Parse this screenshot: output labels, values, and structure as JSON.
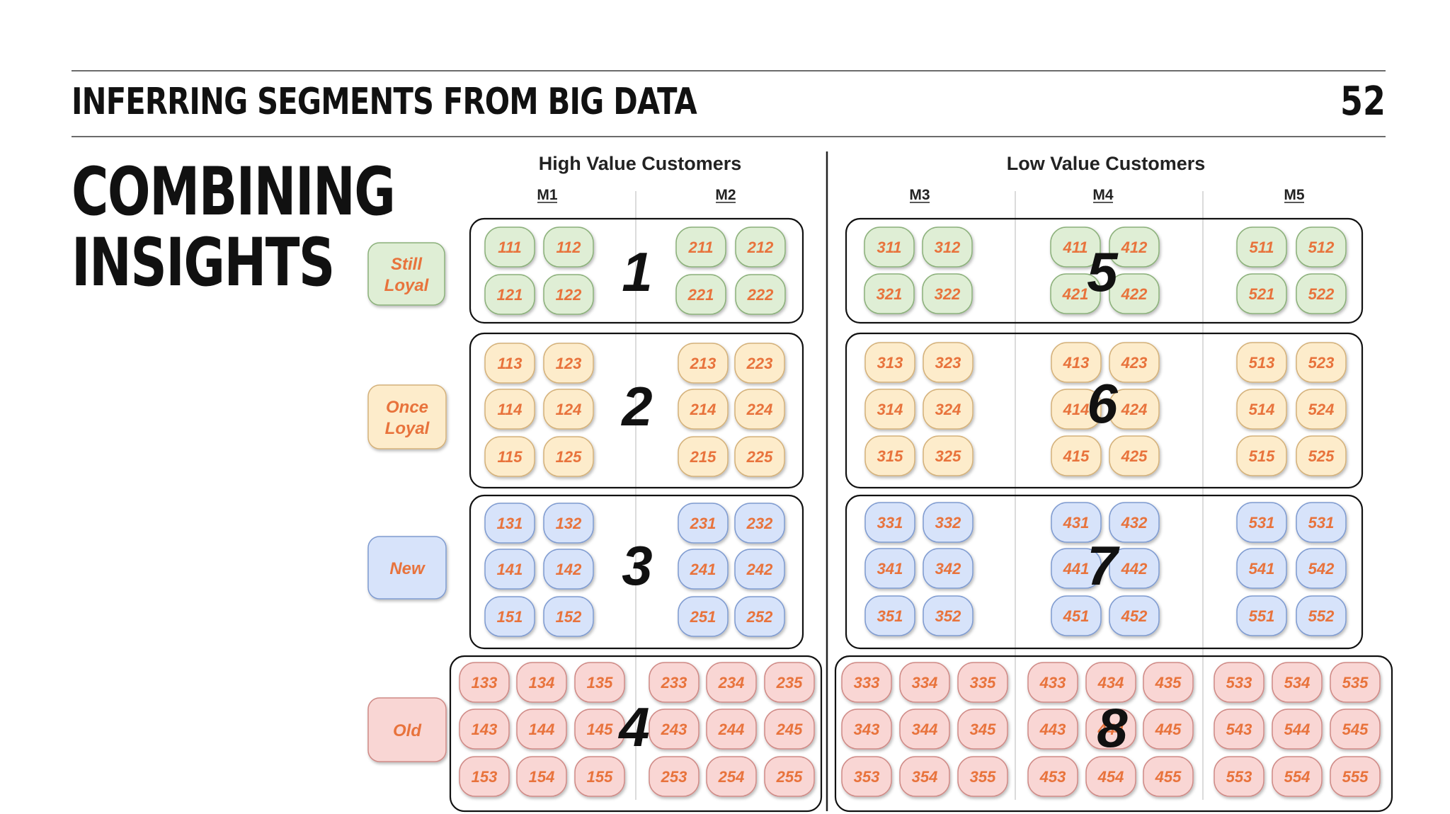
{
  "header": {
    "title": "INFERRING SEGMENTS FROM BIG DATA",
    "page_number": "52"
  },
  "heading": {
    "line1": "COMBINING",
    "line2": "INSIGHTS"
  },
  "diagram": {
    "groups": [
      {
        "label": "High Value Customers",
        "months": [
          "M1",
          "M2"
        ]
      },
      {
        "label": "Low Value Customers",
        "months": [
          "M3",
          "M4",
          "M5"
        ]
      }
    ],
    "rows": [
      {
        "label_lines": [
          "Still",
          "Loyal"
        ],
        "fill": "#dfeed5",
        "stroke": "#8bb07a"
      },
      {
        "label_lines": [
          "Once",
          "Loyal"
        ],
        "fill": "#fdeccb",
        "stroke": "#d4b17a"
      },
      {
        "label_lines": [
          "New"
        ],
        "fill": "#d7e3fa",
        "stroke": "#7f9bd0"
      },
      {
        "label_lines": [
          "Old"
        ],
        "fill": "#f9d6d4",
        "stroke": "#cf8a86"
      }
    ],
    "cell_text_color": "#e8733c",
    "segments": [
      {
        "id": "1",
        "label": "1",
        "row": 0,
        "cells": [
          [
            "111",
            "112",
            "211",
            "212"
          ],
          [
            "121",
            "122",
            "221",
            "222"
          ]
        ]
      },
      {
        "id": "5",
        "label": "5",
        "row": 0,
        "cells": [
          [
            "311",
            "312",
            "411",
            "412",
            "511",
            "512"
          ],
          [
            "321",
            "322",
            "421",
            "422",
            "521",
            "522"
          ]
        ]
      },
      {
        "id": "2",
        "label": "2",
        "row": 1,
        "cells": [
          [
            "113",
            "123",
            "213",
            "223"
          ],
          [
            "114",
            "124",
            "214",
            "224"
          ],
          [
            "115",
            "125",
            "215",
            "225"
          ]
        ]
      },
      {
        "id": "6",
        "label": "6",
        "row": 1,
        "cells": [
          [
            "313",
            "323",
            "413",
            "423",
            "513",
            "523"
          ],
          [
            "314",
            "324",
            "414",
            "424",
            "514",
            "524"
          ],
          [
            "315",
            "325",
            "415",
            "425",
            "515",
            "525"
          ]
        ]
      },
      {
        "id": "3",
        "label": "3",
        "row": 2,
        "cells": [
          [
            "131",
            "132",
            "231",
            "232"
          ],
          [
            "141",
            "142",
            "241",
            "242"
          ],
          [
            "151",
            "152",
            "251",
            "252"
          ]
        ]
      },
      {
        "id": "7",
        "label": "7",
        "row": 2,
        "cells": [
          [
            "331",
            "332",
            "431",
            "432",
            "531",
            "531"
          ],
          [
            "341",
            "342",
            "441",
            "442",
            "541",
            "542"
          ],
          [
            "351",
            "352",
            "451",
            "452",
            "551",
            "552"
          ]
        ]
      },
      {
        "id": "4",
        "label": "4",
        "row": 3,
        "cells": [
          [
            "133",
            "134",
            "135",
            "233",
            "234",
            "235"
          ],
          [
            "143",
            "144",
            "145",
            "243",
            "244",
            "245"
          ],
          [
            "153",
            "154",
            "155",
            "253",
            "254",
            "255"
          ]
        ]
      },
      {
        "id": "8",
        "label": "8",
        "row": 3,
        "cells": [
          [
            "333",
            "334",
            "335",
            "433",
            "434",
            "435",
            "533",
            "534",
            "535"
          ],
          [
            "343",
            "344",
            "345",
            "443",
            "444",
            "445",
            "543",
            "544",
            "545"
          ],
          [
            "353",
            "354",
            "355",
            "453",
            "454",
            "455",
            "553",
            "554",
            "555"
          ]
        ]
      }
    ]
  }
}
